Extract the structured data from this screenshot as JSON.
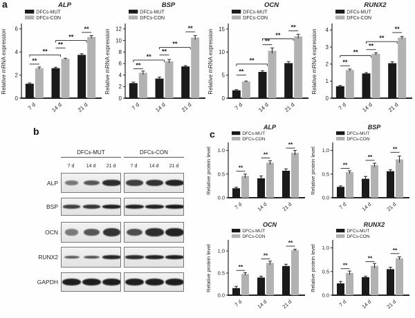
{
  "figure": {
    "panel_a_label": "a",
    "panel_b_label": "b",
    "panel_c_label": "c"
  },
  "legend": {
    "mut": "DFCs-MUT",
    "con": "DFCs-CON"
  },
  "colors": {
    "mut": "#1a1a1a",
    "con": "#b2b2b2",
    "axis": "#222222",
    "text": "#222222"
  },
  "chart_data": [
    {
      "id": "mrna-alp",
      "panel": "a",
      "type": "bar",
      "title": "ALP",
      "ylabel": "Relative mRNA expression",
      "categories": [
        "7 d",
        "14 d",
        "21 d"
      ],
      "yticks": [
        0,
        2,
        4,
        6
      ],
      "ytick_labels": [
        "0",
        "2",
        "4",
        "6"
      ],
      "ymax": 6.35,
      "series": [
        {
          "name": "DFCs-MUT",
          "values": [
            1.25,
            2.6,
            3.75
          ],
          "errors": [
            0.07,
            0.08,
            0.1
          ]
        },
        {
          "name": "DFCs-CON",
          "values": [
            2.6,
            3.4,
            5.3
          ],
          "errors": [
            0.1,
            0.06,
            0.12
          ]
        }
      ],
      "significance": [
        {
          "type": "pair",
          "cat": 0,
          "y": 2.95,
          "label": "**"
        },
        {
          "type": "span",
          "from": 0,
          "to": 1,
          "y": 3.75,
          "label": "**"
        },
        {
          "type": "pair",
          "cat": 1,
          "y": 4.35,
          "label": "**"
        },
        {
          "type": "span",
          "from": 1,
          "to": 2,
          "y": 5.0,
          "label": "**"
        },
        {
          "type": "pair",
          "cat": 2,
          "y": 5.7,
          "label": "**"
        }
      ]
    },
    {
      "id": "mrna-bsp",
      "panel": "a",
      "type": "bar",
      "title": "BSP",
      "ylabel": "Relative mRNA expression",
      "categories": [
        "7 d",
        "14 d",
        "21 d"
      ],
      "yticks": [
        0,
        2,
        4,
        6,
        8,
        10,
        12
      ],
      "ytick_labels": [
        "0",
        "2",
        "4",
        "6",
        "8",
        "10",
        "12"
      ],
      "ymax": 12.7,
      "series": [
        {
          "name": "DFCs-MUT",
          "values": [
            2.6,
            3.4,
            5.5
          ],
          "errors": [
            0.18,
            0.25,
            0.15
          ]
        },
        {
          "name": "DFCs-CON",
          "values": [
            4.4,
            6.4,
            10.5
          ],
          "errors": [
            0.3,
            0.3,
            0.35
          ]
        }
      ],
      "significance": [
        {
          "type": "pair",
          "cat": 0,
          "y": 5.1,
          "label": "**"
        },
        {
          "type": "span",
          "from": 0,
          "to": 1,
          "y": 6.6,
          "label": "**"
        },
        {
          "type": "pair",
          "cat": 1,
          "y": 7.5,
          "label": "**"
        },
        {
          "type": "span",
          "from": 1,
          "to": 2,
          "y": 8.8,
          "label": "**"
        },
        {
          "type": "pair",
          "cat": 2,
          "y": 11.5,
          "label": "**"
        }
      ]
    },
    {
      "id": "mrna-ocn",
      "panel": "a",
      "type": "bar",
      "title": "OCN",
      "ylabel": "Relative mRNA expression",
      "categories": [
        "7 d",
        "14 d",
        "21 d"
      ],
      "yticks": [
        0,
        5,
        10,
        15
      ],
      "ytick_labels": [
        "0",
        "5",
        "10",
        "15"
      ],
      "ymax": 15.9,
      "series": [
        {
          "name": "DFCs-MUT",
          "values": [
            1.7,
            5.7,
            7.6
          ],
          "errors": [
            0.15,
            0.25,
            0.35
          ]
        },
        {
          "name": "DFCs-CON",
          "values": [
            3.6,
            10.3,
            13.4
          ],
          "errors": [
            0.12,
            0.6,
            0.45
          ]
        }
      ],
      "significance": [
        {
          "type": "pair",
          "cat": 0,
          "y": 5.0,
          "label": "**"
        },
        {
          "type": "span",
          "from": 0,
          "to": 1,
          "y": 7.4,
          "label": "**"
        },
        {
          "type": "pair",
          "cat": 1,
          "y": 11.6,
          "label": "**"
        },
        {
          "type": "span",
          "from": 1,
          "to": 2,
          "y": 12.9,
          "label": "**"
        },
        {
          "type": "pair",
          "cat": 2,
          "y": 14.6,
          "label": "**"
        }
      ]
    },
    {
      "id": "mrna-runx2",
      "panel": "a",
      "type": "bar",
      "title": "RUNX2",
      "ylabel": "Relative mRNA expression",
      "categories": [
        "7 d",
        "14 d",
        "21 d"
      ],
      "yticks": [
        0,
        1,
        2,
        3,
        4
      ],
      "ytick_labels": [
        "0",
        "1",
        "2",
        "3",
        "4"
      ],
      "ymax": 4.3,
      "series": [
        {
          "name": "DFCs-MUT",
          "values": [
            0.7,
            1.45,
            2.05
          ],
          "errors": [
            0.04,
            0.05,
            0.08
          ]
        },
        {
          "name": "DFCs-CON",
          "values": [
            1.65,
            2.6,
            3.55
          ],
          "errors": [
            0.06,
            0.06,
            0.07
          ]
        }
      ],
      "significance": [
        {
          "type": "pair",
          "cat": 0,
          "y": 1.9,
          "label": "**"
        },
        {
          "type": "span",
          "from": 0,
          "to": 1,
          "y": 2.5,
          "label": "**"
        },
        {
          "type": "pair",
          "cat": 1,
          "y": 2.85,
          "label": "**"
        },
        {
          "type": "span",
          "from": 1,
          "to": 2,
          "y": 3.32,
          "label": "**"
        },
        {
          "type": "pair",
          "cat": 2,
          "y": 3.85,
          "label": "**"
        }
      ]
    },
    {
      "id": "prot-alp",
      "panel": "c",
      "type": "bar",
      "title": "ALP",
      "ylabel": "Relative protein level",
      "categories": [
        "7 d",
        "14 d",
        "21 d"
      ],
      "yticks": [
        0,
        0.5,
        1.0
      ],
      "ytick_labels": [
        "0.0",
        "0.5",
        "1.0"
      ],
      "ymax": 1.14,
      "series": [
        {
          "name": "DFCs-MUT",
          "values": [
            0.2,
            0.41,
            0.57
          ],
          "errors": [
            0.02,
            0.05,
            0.04
          ]
        },
        {
          "name": "DFCs-CON",
          "values": [
            0.46,
            0.74,
            0.95
          ],
          "errors": [
            0.04,
            0.04,
            0.05
          ]
        }
      ],
      "significance": [
        {
          "type": "pair",
          "cat": 0,
          "y": 0.56,
          "label": "**"
        },
        {
          "type": "pair",
          "cat": 1,
          "y": 0.84,
          "label": "**"
        },
        {
          "type": "pair",
          "cat": 2,
          "y": 1.05,
          "label": "**"
        }
      ]
    },
    {
      "id": "prot-bsp",
      "panel": "c",
      "type": "bar",
      "title": "BSP",
      "ylabel": "Relative protein level",
      "categories": [
        "7 d",
        "14 d",
        "21 d"
      ],
      "yticks": [
        0,
        0.5,
        1.0
      ],
      "ytick_labels": [
        "0.0",
        "0.5",
        "1.0"
      ],
      "ymax": 1.14,
      "series": [
        {
          "name": "DFCs-MUT",
          "values": [
            0.23,
            0.4,
            0.56
          ],
          "errors": [
            0.02,
            0.05,
            0.03
          ]
        },
        {
          "name": "DFCs-CON",
          "values": [
            0.54,
            0.69,
            0.81
          ],
          "errors": [
            0.03,
            0.04,
            0.07
          ]
        }
      ],
      "significance": [
        {
          "type": "pair",
          "cat": 0,
          "y": 0.62,
          "label": "**"
        },
        {
          "type": "pair",
          "cat": 1,
          "y": 0.79,
          "label": "**"
        },
        {
          "type": "pair",
          "cat": 2,
          "y": 0.96,
          "label": "**"
        }
      ]
    },
    {
      "id": "prot-ocn",
      "panel": "c",
      "type": "bar",
      "title": "OCN",
      "ylabel": "Relative protein level",
      "categories": [
        "7 d",
        "14 d",
        "21 d"
      ],
      "yticks": [
        0,
        0.5,
        1.0
      ],
      "ytick_labels": [
        "0.0",
        "0.5",
        "1.0"
      ],
      "ymax": 1.22,
      "series": [
        {
          "name": "DFCs-MUT",
          "values": [
            0.16,
            0.4,
            0.66
          ],
          "errors": [
            0.04,
            0.03,
            0.04
          ]
        },
        {
          "name": "DFCs-CON",
          "values": [
            0.48,
            0.73,
            1.02
          ],
          "errors": [
            0.03,
            0.04,
            0.02
          ]
        }
      ],
      "significance": [
        {
          "type": "pair",
          "cat": 0,
          "y": 0.56,
          "label": "**"
        },
        {
          "type": "pair",
          "cat": 1,
          "y": 0.82,
          "label": "**"
        },
        {
          "type": "pair",
          "cat": 2,
          "y": 1.11,
          "label": "**"
        }
      ]
    },
    {
      "id": "prot-runx2",
      "panel": "c",
      "type": "bar",
      "title": "RUNX2",
      "ylabel": "Relative protein level",
      "categories": [
        "7 d",
        "14 d",
        "21 d"
      ],
      "yticks": [
        0,
        0.5,
        1.0
      ],
      "ytick_labels": [
        "0.0",
        "0.5",
        "1.0"
      ],
      "ymax": 1.14,
      "series": [
        {
          "name": "DFCs-MUT",
          "values": [
            0.25,
            0.38,
            0.55
          ],
          "errors": [
            0.04,
            0.02,
            0.04
          ]
        },
        {
          "name": "DFCs-CON",
          "values": [
            0.47,
            0.62,
            0.78
          ],
          "errors": [
            0.04,
            0.05,
            0.03
          ]
        }
      ],
      "significance": [
        {
          "type": "pair",
          "cat": 0,
          "y": 0.56,
          "label": "**"
        },
        {
          "type": "pair",
          "cat": 1,
          "y": 0.71,
          "label": "**"
        },
        {
          "type": "pair",
          "cat": 2,
          "y": 0.88,
          "label": "**"
        }
      ]
    }
  ],
  "blots": {
    "group_headers": [
      "DFCs-MUT",
      "DFCs-CON"
    ],
    "lane_labels": [
      "7 d",
      "14 d",
      "21 d"
    ],
    "rows": [
      {
        "label": "ALP",
        "band_height": 8,
        "mut": [
          0.3,
          0.55,
          0.85
        ],
        "con": [
          0.72,
          0.82,
          0.92
        ]
      },
      {
        "label": "BSP",
        "band_height": 5,
        "mut": [
          0.7,
          0.78,
          0.95
        ],
        "con": [
          0.92,
          0.94,
          1.0
        ]
      },
      {
        "label": "OCN",
        "band_height": 11,
        "mut": [
          0.28,
          0.55,
          0.8
        ],
        "con": [
          0.62,
          0.85,
          0.92
        ]
      },
      {
        "label": "RUNX2",
        "band_height": 5,
        "mut": [
          0.5,
          0.58,
          0.9
        ],
        "con": [
          0.85,
          0.92,
          0.95
        ]
      },
      {
        "label": "GAPDH",
        "band_height": 9,
        "mut": [
          0.96,
          0.96,
          0.96
        ],
        "con": [
          0.96,
          0.96,
          0.96
        ]
      }
    ]
  }
}
